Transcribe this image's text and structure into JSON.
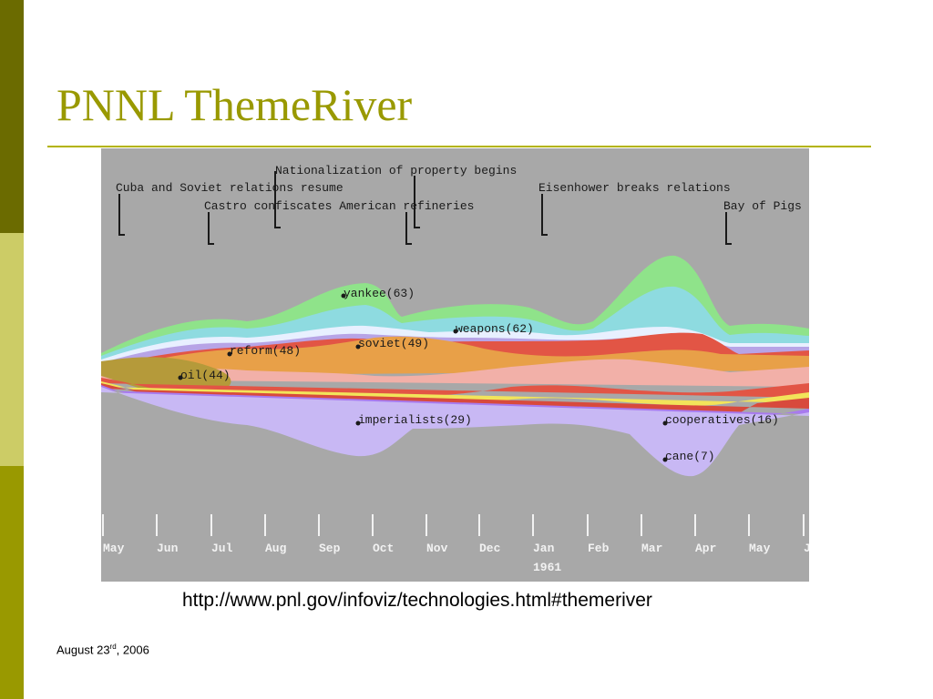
{
  "slide": {
    "title": "PNNL ThemeRiver",
    "url": "http://www.pnl.gov/infoviz/technologies.html#themeriver",
    "date_main": "August 23",
    "date_sup": "rd",
    "date_tail": ", 2006"
  },
  "colors": {
    "accent": "#999900",
    "bar_dark": "#6b6b00",
    "bar_light": "#cccc66",
    "figure_bg": "#a8a8a8"
  },
  "figure": {
    "events": [
      "Nationalization of property begins",
      "Cuba and Soviet relations resume",
      "Eisenhower breaks relations",
      "Castro confiscates American refineries",
      "Bay of Pigs"
    ],
    "theme_labels": [
      "yankee(63)",
      "weapons(62)",
      "reform(48)",
      "soviet(49)",
      "oil(44)",
      "imperialists(29)",
      "cooperatives(16)",
      "cane(7)"
    ],
    "months": [
      "May",
      "Jun",
      "Jul",
      "Aug",
      "Sep",
      "Oct",
      "Nov",
      "Dec",
      "Jan",
      "Feb",
      "Mar",
      "Apr",
      "May",
      "J"
    ],
    "year_label": "1961"
  }
}
